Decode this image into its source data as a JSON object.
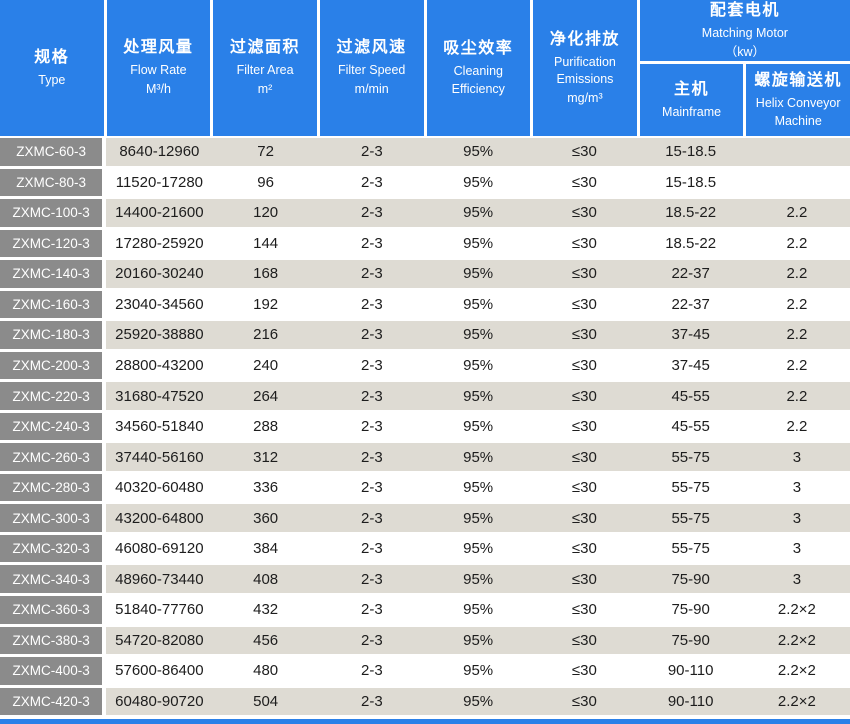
{
  "table": {
    "colors": {
      "header_blue": "#2a80e8",
      "type_column_gray": "#8b8b8b",
      "row_beige": "#dedbd3",
      "row_white": "#ffffff"
    },
    "header": {
      "columns": [
        {
          "zh": "规格",
          "en": "Type"
        },
        {
          "zh": "处理风量",
          "en": "Flow Rate",
          "unit": "M³/h"
        },
        {
          "zh": "过滤面积",
          "en": "Filter Area",
          "unit": "m²"
        },
        {
          "zh": "过滤风速",
          "en": "Filter Speed",
          "unit": "m/min"
        },
        {
          "zh": "吸尘效率",
          "en": "Cleaning",
          "en2": "Efficiency"
        },
        {
          "zh": "净化排放",
          "en": "Purification",
          "en2": "Emissions",
          "unit": "mg/m³"
        }
      ],
      "motor_group": {
        "zh": "配套电机",
        "en": "Matching Motor",
        "unit": "（kw）",
        "sub": [
          {
            "zh": "主机",
            "en": "Mainframe"
          },
          {
            "zh": "螺旋输送机",
            "en": "Helix Conveyor",
            "en2": "Machine"
          }
        ]
      }
    },
    "rows": [
      [
        "ZXMC-60-3",
        "8640-12960",
        "72",
        "2-3",
        "95%",
        "≤30",
        "15-18.5",
        ""
      ],
      [
        "ZXMC-80-3",
        "11520-17280",
        "96",
        "2-3",
        "95%",
        "≤30",
        "15-18.5",
        ""
      ],
      [
        "ZXMC-100-3",
        "14400-21600",
        "120",
        "2-3",
        "95%",
        "≤30",
        "18.5-22",
        "2.2"
      ],
      [
        "ZXMC-120-3",
        "17280-25920",
        "144",
        "2-3",
        "95%",
        "≤30",
        "18.5-22",
        "2.2"
      ],
      [
        "ZXMC-140-3",
        "20160-30240",
        "168",
        "2-3",
        "95%",
        "≤30",
        "22-37",
        "2.2"
      ],
      [
        "ZXMC-160-3",
        "23040-34560",
        "192",
        "2-3",
        "95%",
        "≤30",
        "22-37",
        "2.2"
      ],
      [
        "ZXMC-180-3",
        "25920-38880",
        "216",
        "2-3",
        "95%",
        "≤30",
        "37-45",
        "2.2"
      ],
      [
        "ZXMC-200-3",
        "28800-43200",
        "240",
        "2-3",
        "95%",
        "≤30",
        "37-45",
        "2.2"
      ],
      [
        "ZXMC-220-3",
        "31680-47520",
        "264",
        "2-3",
        "95%",
        "≤30",
        "45-55",
        "2.2"
      ],
      [
        "ZXMC-240-3",
        "34560-51840",
        "288",
        "2-3",
        "95%",
        "≤30",
        "45-55",
        "2.2"
      ],
      [
        "ZXMC-260-3",
        "37440-56160",
        "312",
        "2-3",
        "95%",
        "≤30",
        "55-75",
        "3"
      ],
      [
        "ZXMC-280-3",
        "40320-60480",
        "336",
        "2-3",
        "95%",
        "≤30",
        "55-75",
        "3"
      ],
      [
        "ZXMC-300-3",
        "43200-64800",
        "360",
        "2-3",
        "95%",
        "≤30",
        "55-75",
        "3"
      ],
      [
        "ZXMC-320-3",
        "46080-69120",
        "384",
        "2-3",
        "95%",
        "≤30",
        "55-75",
        "3"
      ],
      [
        "ZXMC-340-3",
        "48960-73440",
        "408",
        "2-3",
        "95%",
        "≤30",
        "75-90",
        "3"
      ],
      [
        "ZXMC-360-3",
        "51840-77760",
        "432",
        "2-3",
        "95%",
        "≤30",
        "75-90",
        "2.2×2"
      ],
      [
        "ZXMC-380-3",
        "54720-82080",
        "456",
        "2-3",
        "95%",
        "≤30",
        "75-90",
        "2.2×2"
      ],
      [
        "ZXMC-400-3",
        "57600-86400",
        "480",
        "2-3",
        "95%",
        "≤30",
        "90-110",
        "2.2×2"
      ],
      [
        "ZXMC-420-3",
        "60480-90720",
        "504",
        "2-3",
        "95%",
        "≤30",
        "90-110",
        "2.2×2"
      ]
    ]
  }
}
